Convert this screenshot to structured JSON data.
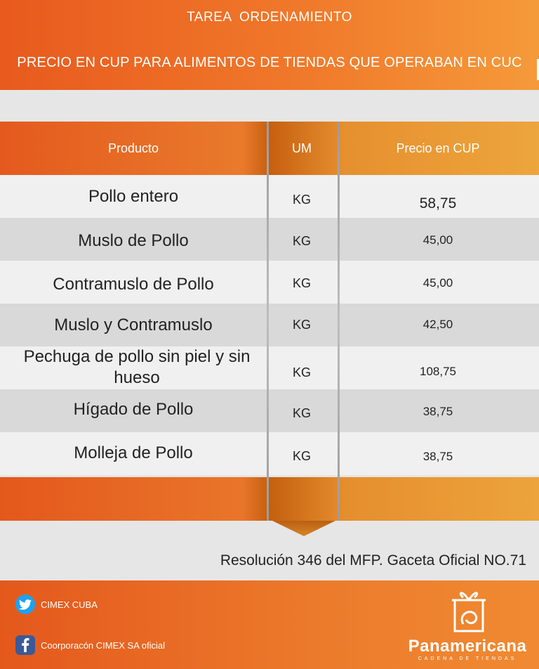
{
  "header": {
    "title": "TAREA  ORDENAMIENTO",
    "subtitle": "PRECIO EN CUP PARA ALIMENTOS DE TIENDAS QUE OPERABAN EN CUC"
  },
  "table": {
    "columns": [
      "Producto",
      "UM",
      "Precio en CUP"
    ],
    "rows": [
      {
        "product": "Pollo entero",
        "um": "KG",
        "price": "58,75"
      },
      {
        "product": "Muslo de Pollo",
        "um": "KG",
        "price": "45,00"
      },
      {
        "product": "Contramuslo de Pollo",
        "um": "KG",
        "price": "45,00"
      },
      {
        "product": "Muslo y Contramuslo",
        "um": "KG",
        "price": "42,50"
      },
      {
        "product": "Pechuga de pollo sin piel y sin hueso",
        "um": "KG",
        "price": "108,75"
      },
      {
        "product": "Hígado de Pollo",
        "um": "KG",
        "price": "38,75"
      },
      {
        "product": "Molleja de Pollo",
        "um": "KG",
        "price": "38,75"
      }
    ]
  },
  "resolution": "Resolución 346 del MFP. Gaceta Oficial NO.71",
  "footer": {
    "twitter": {
      "icon": "twitter-icon",
      "label": "CIMEX CUBA"
    },
    "facebook": {
      "icon": "facebook-icon",
      "label": "Coorporacón CIMEX SA oficial"
    },
    "brand": {
      "name": "Panamericana",
      "tagline": "CADENA DE TIENDAS",
      "icon": "gift-box-logo"
    }
  },
  "colors": {
    "orange": "#e85a1e",
    "orange_light": "#f59a3a",
    "row_light": "#f0f0f0",
    "row_dark": "#d9d9d9",
    "twitter_blue": "#1da1f2",
    "facebook_blue": "#3b5998"
  }
}
